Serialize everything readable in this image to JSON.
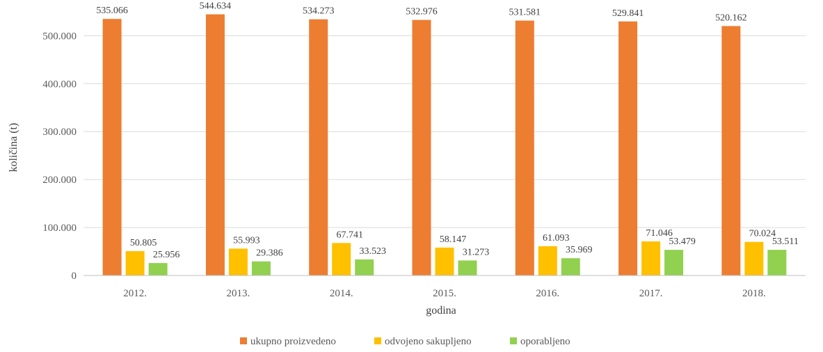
{
  "chart_data": {
    "type": "bar",
    "title": "",
    "xlabel": "godina",
    "ylabel": "količina (t)",
    "ylim": [
      0,
      560000
    ],
    "y_ticks": [
      0,
      100000,
      200000,
      300000,
      400000,
      500000
    ],
    "y_tick_labels": [
      "0",
      "100.000",
      "200.000",
      "300.000",
      "400.000",
      "500.000"
    ],
    "grid": true,
    "legend_position": "bottom",
    "categories": [
      "2012.",
      "2013.",
      "2014.",
      "2015.",
      "2016.",
      "2017.",
      "2018."
    ],
    "series": [
      {
        "name": "ukupno proizvedeno",
        "color": "#ED7D31",
        "values": [
          535066,
          544634,
          534273,
          532976,
          531581,
          529841,
          520162
        ],
        "labels": [
          "535.066",
          "544.634",
          "534.273",
          "532.976",
          "531.581",
          "529.841",
          "520.162"
        ]
      },
      {
        "name": "odvojeno sakupljeno",
        "color": "#FFC000",
        "values": [
          50805,
          55993,
          67741,
          58147,
          61093,
          71046,
          70024
        ],
        "labels": [
          "50.805",
          "55.993",
          "67.741",
          "58.147",
          "61.093",
          "71.046",
          "70.024"
        ]
      },
      {
        "name": "oporabljeno",
        "color": "#92D050",
        "values": [
          25956,
          29386,
          33523,
          31273,
          35969,
          53479,
          53511
        ],
        "labels": [
          "25.956",
          "29.386",
          "33.523",
          "31.273",
          "35.969",
          "53.479",
          "53.511"
        ]
      }
    ]
  }
}
